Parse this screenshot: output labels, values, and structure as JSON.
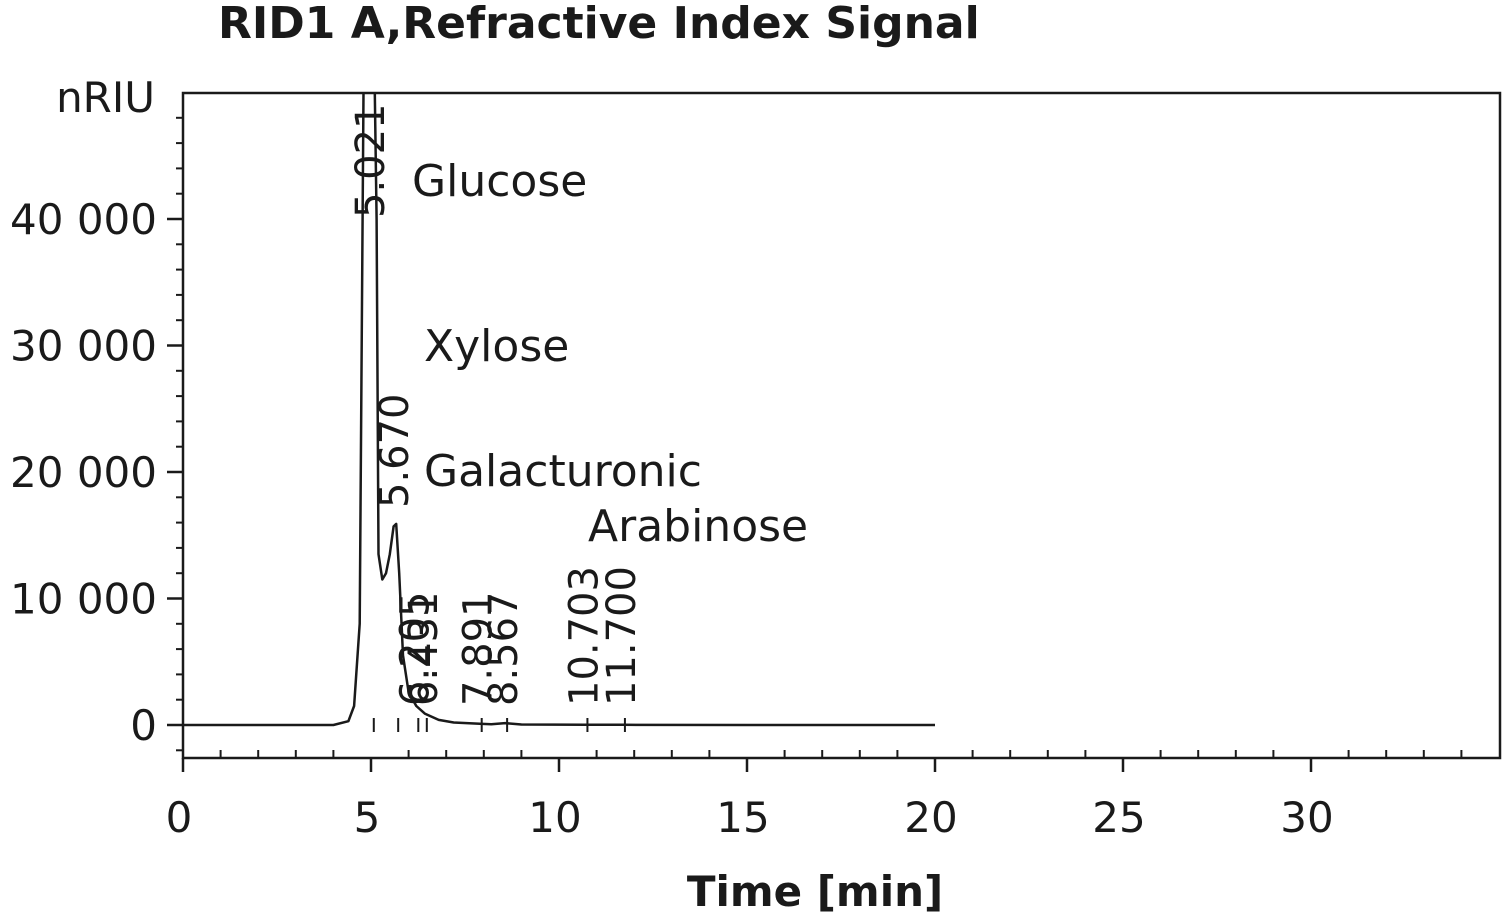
{
  "chart_data": {
    "type": "line",
    "title": "RID1 A,Refractive Index Signal",
    "xlabel": "Time [min]",
    "ylabel": "nRIU",
    "xlim": [
      0,
      35
    ],
    "ylim": [
      -2500,
      50000
    ],
    "x_ticks": [
      0,
      5,
      10,
      15,
      20,
      25,
      30
    ],
    "x_tick_labels": [
      "0",
      "5",
      "10",
      "15",
      "20",
      "25",
      "30"
    ],
    "y_ticks": [
      0,
      10000,
      20000,
      30000,
      40000
    ],
    "y_tick_labels": [
      "0",
      "10 000",
      "20 000",
      "30 000",
      "40 000"
    ],
    "grid": false,
    "series": [
      {
        "x": [
          0,
          4.0,
          4.4,
          4.55,
          4.7,
          4.8,
          5.021,
          5.1,
          5.15,
          5.2,
          5.3,
          5.4,
          5.5,
          5.6,
          5.67,
          5.75,
          5.85,
          6.0,
          6.205,
          6.431,
          6.8,
          7.2,
          7.891,
          8.2,
          8.567,
          9.0,
          10.703,
          11.7,
          15.0,
          20.0
        ],
        "y": [
          0,
          0,
          300,
          1500,
          8000,
          50000,
          50000,
          50000,
          40000,
          13500,
          11500,
          12000,
          13500,
          15700,
          15900,
          12000,
          5500,
          2600,
          1500,
          900,
          400,
          200,
          100,
          60,
          150,
          40,
          20,
          15,
          0,
          0
        ]
      }
    ],
    "peak_labels": [
      "5.021",
      "5.670",
      "6.205",
      "6.431",
      "7.891",
      "8.567",
      "10.703",
      "11.700"
    ],
    "peak_label_x": [
      5.021,
      5.67,
      6.205,
      6.431,
      7.891,
      8.567,
      10.703,
      11.7
    ],
    "annotations": [
      "Glucose",
      "Xylose",
      "Galacturonic",
      "Arabinose"
    ]
  }
}
